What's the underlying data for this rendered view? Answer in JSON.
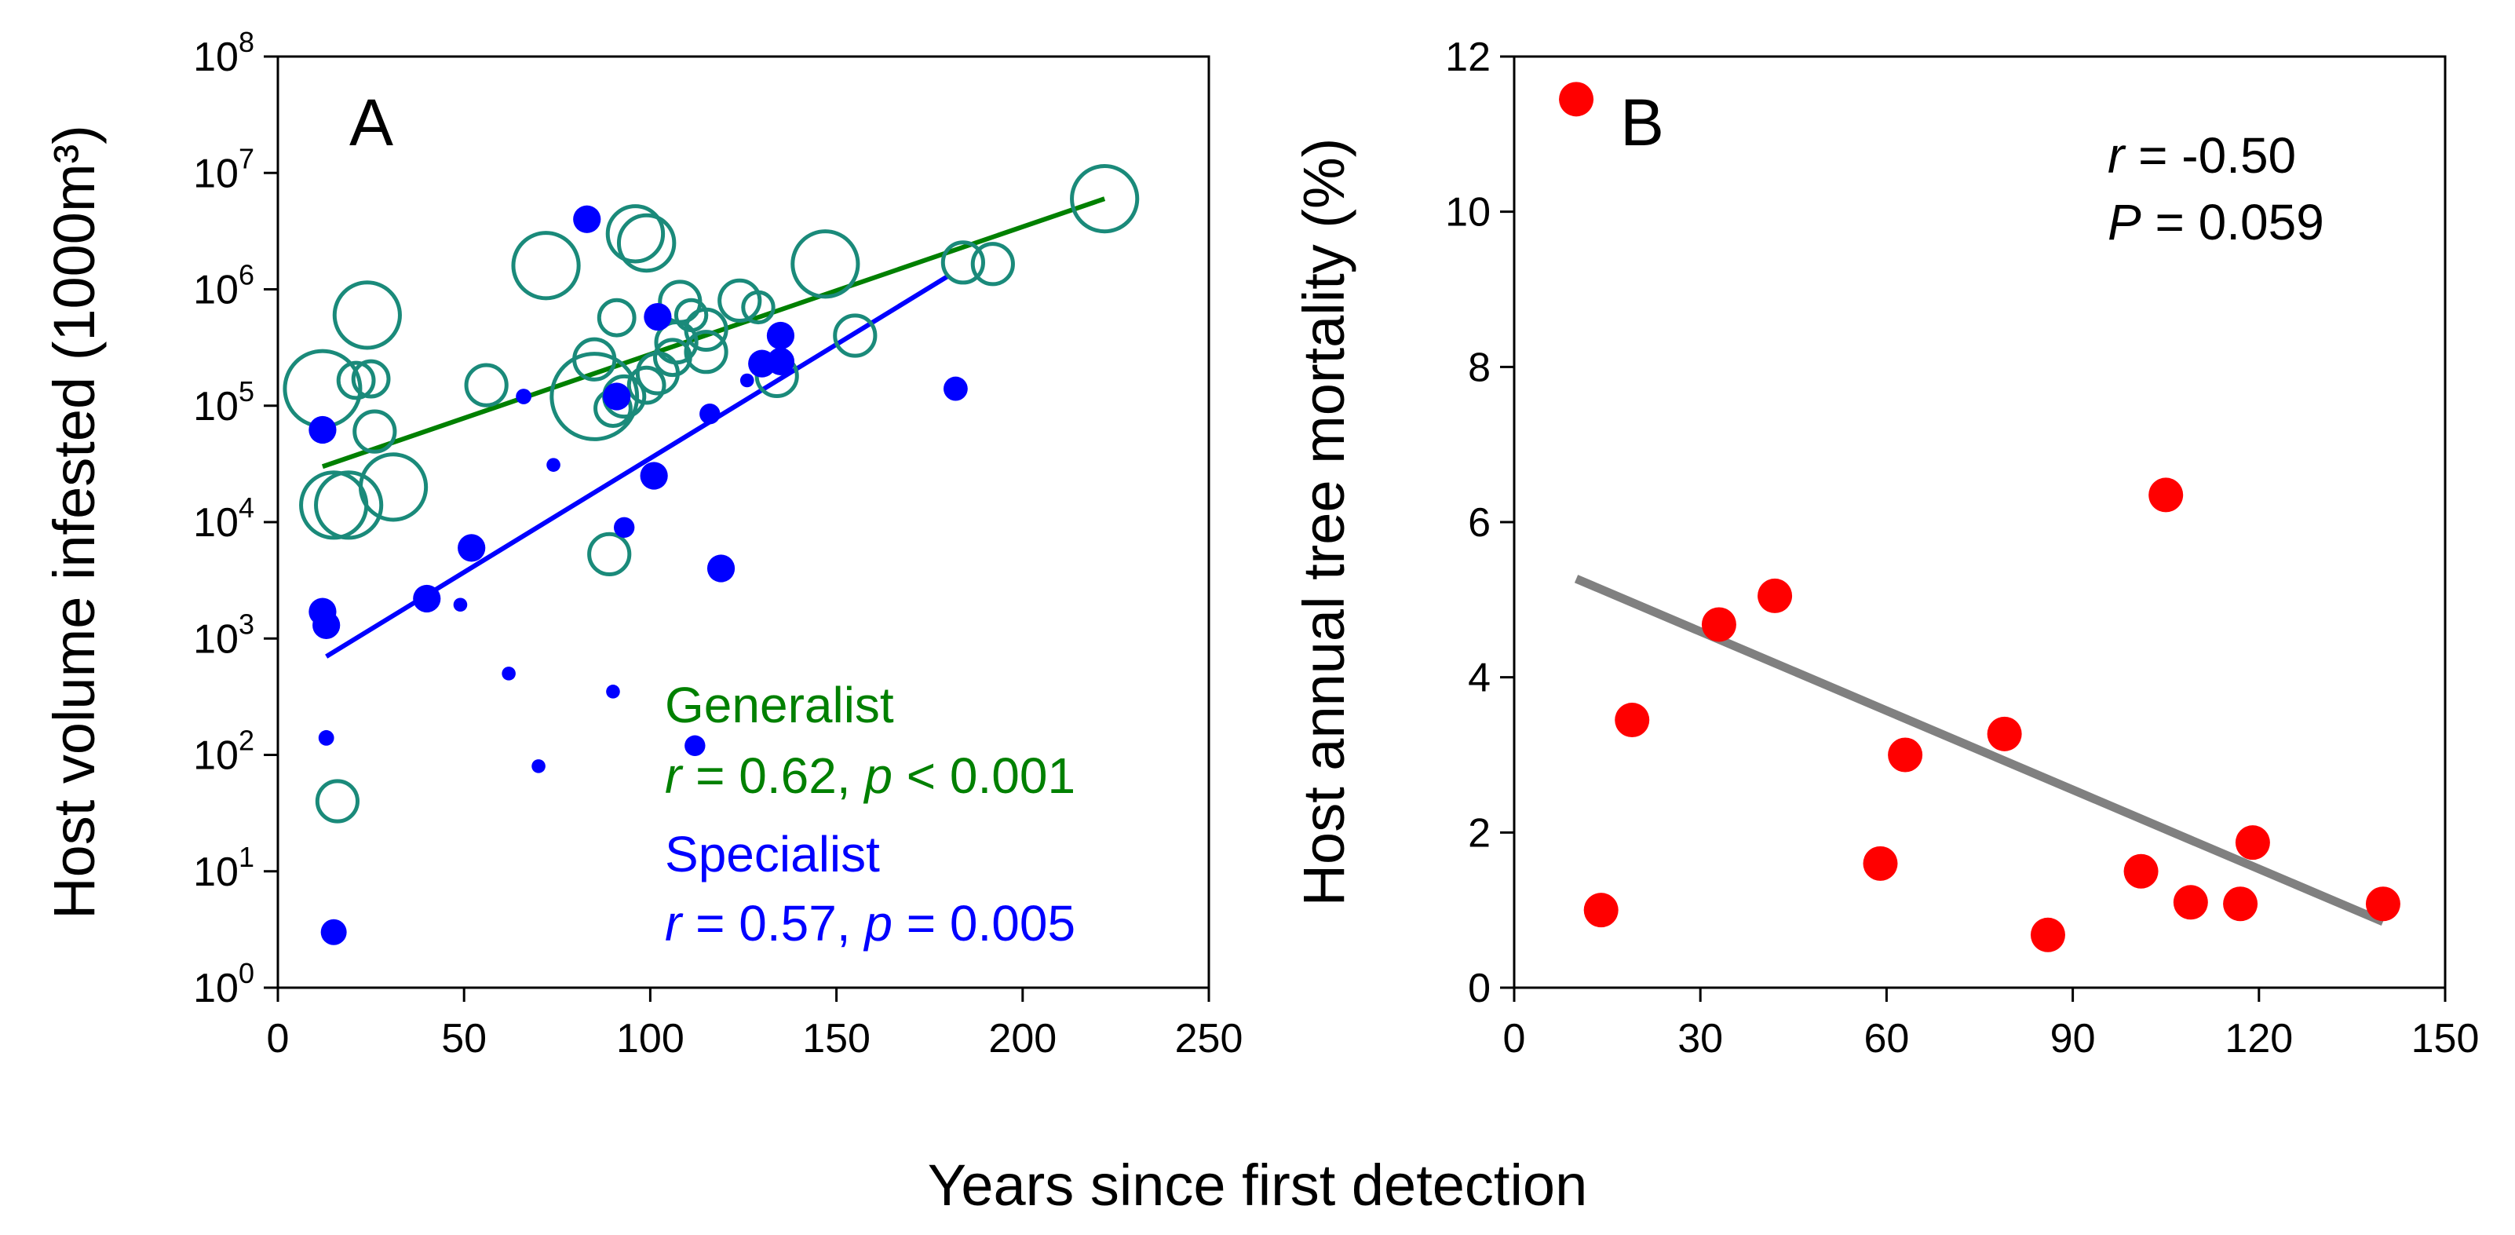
{
  "figure": {
    "shared_xlabel": "Years since first detection"
  },
  "chart_data": [
    {
      "panel": "A",
      "type": "scatter",
      "y_scale": "log",
      "ylabel": "Host volume infested (1000m³)",
      "xlim": [
        0,
        250
      ],
      "ylim": [
        1,
        100000000
      ],
      "x_ticks": [
        0,
        50,
        100,
        150,
        200,
        250
      ],
      "y_ticks": [
        {
          "value": 1,
          "base": "10",
          "exp": "0"
        },
        {
          "value": 10,
          "base": "10",
          "exp": "1"
        },
        {
          "value": 100,
          "base": "10",
          "exp": "2"
        },
        {
          "value": 1000,
          "base": "10",
          "exp": "3"
        },
        {
          "value": 10000,
          "base": "10",
          "exp": "4"
        },
        {
          "value": 100000,
          "base": "10",
          "exp": "5"
        },
        {
          "value": 1000000,
          "base": "10",
          "exp": "6"
        },
        {
          "value": 10000000,
          "base": "10",
          "exp": "7"
        },
        {
          "value": 100000000,
          "base": "10",
          "exp": "8"
        }
      ],
      "series": [
        {
          "name": "Generalist",
          "color": "#008000",
          "marker_color": "#1a8a7a",
          "marker": "open-circle",
          "size_note": "marker size varies",
          "stat_r": "0.62",
          "stat_p": "< 0.001",
          "trend": {
            "x": [
              12,
              222
            ],
            "y": [
              30000,
              6000000
            ]
          },
          "points": [
            {
              "x": 12,
              "y": 140000,
              "s": 3
            },
            {
              "x": 15,
              "y": 14000,
              "s": 2.6
            },
            {
              "x": 16,
              "y": 40,
              "s": 1.6
            },
            {
              "x": 19,
              "y": 14000,
              "s": 2.6
            },
            {
              "x": 21,
              "y": 165000,
              "s": 1.4
            },
            {
              "x": 24,
              "y": 600000,
              "s": 2.6
            },
            {
              "x": 25,
              "y": 170000,
              "s": 1.4
            },
            {
              "x": 26,
              "y": 60000,
              "s": 1.6
            },
            {
              "x": 31,
              "y": 20000,
              "s": 2.6
            },
            {
              "x": 56,
              "y": 150000,
              "s": 1.6
            },
            {
              "x": 72,
              "y": 1600000,
              "s": 2.6
            },
            {
              "x": 85,
              "y": 250000,
              "s": 1.6
            },
            {
              "x": 85,
              "y": 120000,
              "s": 3.4
            },
            {
              "x": 89,
              "y": 5300,
              "s": 1.6
            },
            {
              "x": 90,
              "y": 95000,
              "s": 1.4
            },
            {
              "x": 91,
              "y": 570000,
              "s": 1.4
            },
            {
              "x": 93,
              "y": 120000,
              "s": 1.6
            },
            {
              "x": 96,
              "y": 3000000,
              "s": 2.2
            },
            {
              "x": 99,
              "y": 150000,
              "s": 1.4
            },
            {
              "x": 99,
              "y": 2500000,
              "s": 2.2
            },
            {
              "x": 102,
              "y": 190000,
              "s": 1.6
            },
            {
              "x": 106,
              "y": 260000,
              "s": 1.4
            },
            {
              "x": 107,
              "y": 350000,
              "s": 1.6
            },
            {
              "x": 108,
              "y": 780000,
              "s": 1.6
            },
            {
              "x": 111,
              "y": 600000,
              "s": 1.2
            },
            {
              "x": 115,
              "y": 450000,
              "s": 1.6
            },
            {
              "x": 115,
              "y": 290000,
              "s": 1.6
            },
            {
              "x": 124,
              "y": 800000,
              "s": 1.6
            },
            {
              "x": 129,
              "y": 700000,
              "s": 1.2
            },
            {
              "x": 134,
              "y": 180000,
              "s": 1.6
            },
            {
              "x": 147,
              "y": 1650000,
              "s": 2.6
            },
            {
              "x": 155,
              "y": 400000,
              "s": 1.6
            },
            {
              "x": 184,
              "y": 1700000,
              "s": 1.6
            },
            {
              "x": 192,
              "y": 1650000,
              "s": 1.6
            },
            {
              "x": 222,
              "y": 6000000,
              "s": 2.6
            }
          ]
        },
        {
          "name": "Specialist",
          "color": "#0000ff",
          "marker": "filled-circle",
          "size_note": "marker size varies",
          "stat_r": "0.57",
          "stat_p": "= 0.005",
          "trend": {
            "x": [
              13,
              180
            ],
            "y": [
              700,
              1300000
            ]
          },
          "points": [
            {
              "x": 12,
              "y": 62000,
              "s": 1.6
            },
            {
              "x": 12,
              "y": 1700,
              "s": 1.6
            },
            {
              "x": 13,
              "y": 1300,
              "s": 1.6
            },
            {
              "x": 13,
              "y": 140,
              "s": 0.9
            },
            {
              "x": 15,
              "y": 3,
              "s": 1.5
            },
            {
              "x": 40,
              "y": 2200,
              "s": 1.6
            },
            {
              "x": 49,
              "y": 1950,
              "s": 0.8
            },
            {
              "x": 52,
              "y": 6000,
              "s": 1.6
            },
            {
              "x": 62,
              "y": 500,
              "s": 0.8
            },
            {
              "x": 66,
              "y": 120000,
              "s": 0.9
            },
            {
              "x": 70,
              "y": 80,
              "s": 0.8
            },
            {
              "x": 74,
              "y": 31000,
              "s": 0.8
            },
            {
              "x": 83,
              "y": 4000000,
              "s": 1.6
            },
            {
              "x": 90,
              "y": 350,
              "s": 0.8
            },
            {
              "x": 91,
              "y": 120000,
              "s": 1.6
            },
            {
              "x": 93,
              "y": 9000,
              "s": 1.2
            },
            {
              "x": 101,
              "y": 25000,
              "s": 1.6
            },
            {
              "x": 102,
              "y": 580000,
              "s": 1.6
            },
            {
              "x": 112,
              "y": 120,
              "s": 1.2
            },
            {
              "x": 116,
              "y": 85000,
              "s": 1.2
            },
            {
              "x": 119,
              "y": 4000,
              "s": 1.6
            },
            {
              "x": 126,
              "y": 165000,
              "s": 0.8
            },
            {
              "x": 130,
              "y": 230000,
              "s": 1.6
            },
            {
              "x": 135,
              "y": 400000,
              "s": 1.6
            },
            {
              "x": 135,
              "y": 240000,
              "s": 1.6
            },
            {
              "x": 182,
              "y": 140000,
              "s": 1.4
            }
          ]
        }
      ]
    },
    {
      "panel": "B",
      "type": "scatter",
      "ylabel": "Host annual tree mortality (%)",
      "xlim": [
        0,
        150
      ],
      "ylim": [
        0,
        12
      ],
      "x_ticks": [
        0,
        30,
        60,
        90,
        120,
        150
      ],
      "y_ticks": [
        0,
        2,
        4,
        6,
        8,
        10,
        12
      ],
      "stat_r": "-0.50",
      "stat_p": "0.059",
      "point_color": "#ff0000",
      "trend_color": "#808080",
      "trend": {
        "x": [
          10,
          140
        ],
        "y": [
          5.27,
          0.85
        ]
      },
      "points": [
        {
          "x": 10,
          "y": 11.45
        },
        {
          "x": 14,
          "y": 1.0
        },
        {
          "x": 19,
          "y": 3.45
        },
        {
          "x": 33,
          "y": 4.68
        },
        {
          "x": 42,
          "y": 5.05
        },
        {
          "x": 59,
          "y": 1.6
        },
        {
          "x": 63,
          "y": 3.0
        },
        {
          "x": 79,
          "y": 3.27
        },
        {
          "x": 86,
          "y": 0.68
        },
        {
          "x": 101,
          "y": 1.5
        },
        {
          "x": 105,
          "y": 6.35
        },
        {
          "x": 109,
          "y": 1.1
        },
        {
          "x": 117,
          "y": 1.08
        },
        {
          "x": 119,
          "y": 1.87
        },
        {
          "x": 140,
          "y": 1.08
        }
      ]
    }
  ]
}
